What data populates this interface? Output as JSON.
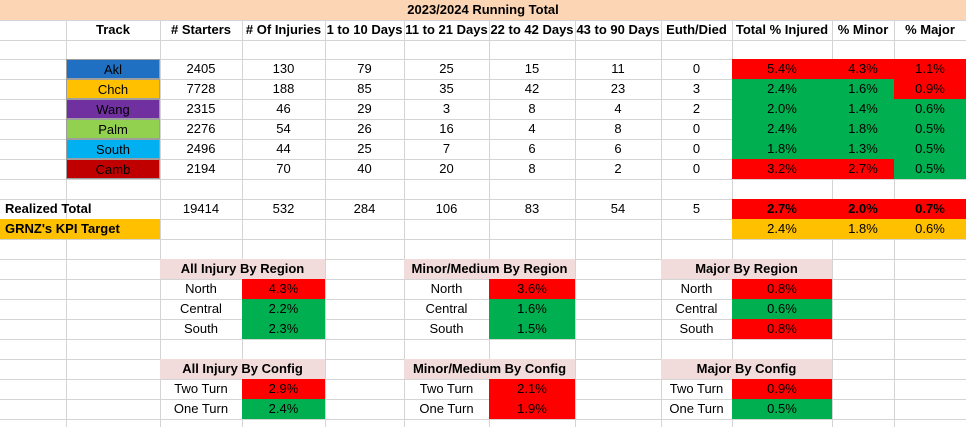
{
  "title": "2023/2024 Running Total",
  "headers": {
    "track": "Track",
    "starters": "# Starters",
    "injuries": "# Of Injuries",
    "d1_10": "1 to 10 Days",
    "d11_21": "11 to 21 Days",
    "d22_42": "22 to 42 Days",
    "d43_90": "43 to 90 Days",
    "euth": "Euth/Died",
    "total_pct": "Total % Injured",
    "minor_pct": "% Minor",
    "major_pct": "% Major"
  },
  "colors": {
    "Akl": "#1f6fc3",
    "Chch": "#ffc000",
    "Wang": "#7030a0",
    "Palm": "#92d050",
    "South": "#00b0f0",
    "Camb": "#c00000",
    "red": "#ff0000",
    "green": "#00b050",
    "gold": "#ffc000"
  },
  "tracks": [
    {
      "name": "Akl",
      "starters": "2405",
      "injuries": "130",
      "d1_10": "79",
      "d11_21": "25",
      "d22_42": "15",
      "d43_90": "11",
      "euth": "0",
      "total": "5.4%",
      "minor": "4.3%",
      "major": "1.1%",
      "total_status": "red",
      "minor_status": "red",
      "major_status": "red"
    },
    {
      "name": "Chch",
      "starters": "7728",
      "injuries": "188",
      "d1_10": "85",
      "d11_21": "35",
      "d22_42": "42",
      "d43_90": "23",
      "euth": "3",
      "total": "2.4%",
      "minor": "1.6%",
      "major": "0.9%",
      "total_status": "green",
      "minor_status": "green",
      "major_status": "red"
    },
    {
      "name": "Wang",
      "starters": "2315",
      "injuries": "46",
      "d1_10": "29",
      "d11_21": "3",
      "d22_42": "8",
      "d43_90": "4",
      "euth": "2",
      "total": "2.0%",
      "minor": "1.4%",
      "major": "0.6%",
      "total_status": "green",
      "minor_status": "green",
      "major_status": "green"
    },
    {
      "name": "Palm",
      "starters": "2276",
      "injuries": "54",
      "d1_10": "26",
      "d11_21": "16",
      "d22_42": "4",
      "d43_90": "8",
      "euth": "0",
      "total": "2.4%",
      "minor": "1.8%",
      "major": "0.5%",
      "total_status": "green",
      "minor_status": "green",
      "major_status": "green"
    },
    {
      "name": "South",
      "starters": "2496",
      "injuries": "44",
      "d1_10": "25",
      "d11_21": "7",
      "d22_42": "6",
      "d43_90": "6",
      "euth": "0",
      "total": "1.8%",
      "minor": "1.3%",
      "major": "0.5%",
      "total_status": "green",
      "minor_status": "green",
      "major_status": "green"
    },
    {
      "name": "Camb",
      "starters": "2194",
      "injuries": "70",
      "d1_10": "40",
      "d11_21": "20",
      "d22_42": "8",
      "d43_90": "2",
      "euth": "0",
      "total": "3.2%",
      "minor": "2.7%",
      "major": "0.5%",
      "total_status": "red",
      "minor_status": "red",
      "major_status": "green"
    }
  ],
  "realized": {
    "label": "Realized Total",
    "starters": "19414",
    "injuries": "532",
    "d1_10": "284",
    "d11_21": "106",
    "d22_42": "83",
    "d43_90": "54",
    "euth": "5",
    "total": "2.7%",
    "minor": "2.0%",
    "major": "0.7%"
  },
  "kpi": {
    "label": "GRNZ's KPI Target",
    "total": "2.4%",
    "minor": "1.8%",
    "major": "0.6%"
  },
  "region_tables": [
    {
      "title": "All Injury By Region",
      "rows": [
        {
          "label": "North",
          "value": "4.3%",
          "status": "red"
        },
        {
          "label": "Central",
          "value": "2.2%",
          "status": "green"
        },
        {
          "label": "South",
          "value": "2.3%",
          "status": "green"
        }
      ]
    },
    {
      "title": "Minor/Medium By Region",
      "rows": [
        {
          "label": "North",
          "value": "3.6%",
          "status": "red"
        },
        {
          "label": "Central",
          "value": "1.6%",
          "status": "green"
        },
        {
          "label": "South",
          "value": "1.5%",
          "status": "green"
        }
      ]
    },
    {
      "title": "Major By Region",
      "rows": [
        {
          "label": "North",
          "value": "0.8%",
          "status": "red"
        },
        {
          "label": "Central",
          "value": "0.6%",
          "status": "green"
        },
        {
          "label": "South",
          "value": "0.8%",
          "status": "red"
        }
      ]
    }
  ],
  "config_tables": [
    {
      "title": "All Injury By Config",
      "rows": [
        {
          "label": "Two Turn",
          "value": "2.9%",
          "status": "red"
        },
        {
          "label": "One Turn",
          "value": "2.4%",
          "status": "green"
        }
      ]
    },
    {
      "title": "Minor/Medium By Config",
      "rows": [
        {
          "label": "Two Turn",
          "value": "2.1%",
          "status": "red"
        },
        {
          "label": "One Turn",
          "value": "1.9%",
          "status": "red"
        }
      ]
    },
    {
      "title": "Major By Config",
      "rows": [
        {
          "label": "Two Turn",
          "value": "0.9%",
          "status": "red"
        },
        {
          "label": "One Turn",
          "value": "0.5%",
          "status": "green"
        }
      ]
    }
  ]
}
